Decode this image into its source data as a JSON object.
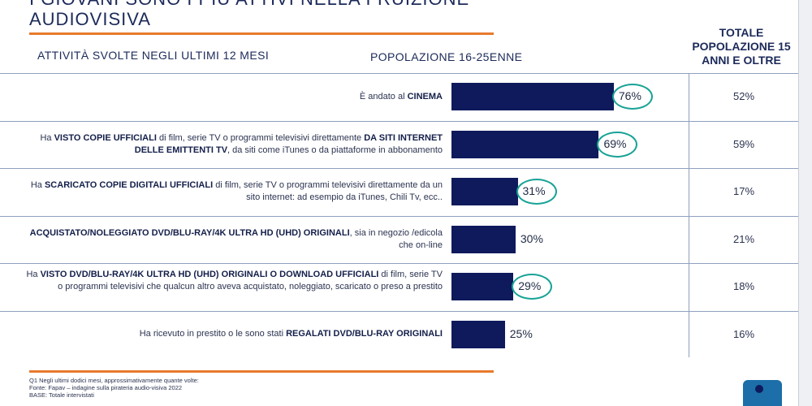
{
  "header": {
    "title_line1": "I GIOVANI SONO I PIÙ ATTIVI NELLA FRUIZIONE",
    "title_line2": "AUDIOVISIVA",
    "col_activity": "ATTIVITÀ SVOLTE NEGLI ULTIMI 12 MESI",
    "col_youth": "POPOLAZIONE 16-25ENNE",
    "col_total": "TOTALE POPOLAZIONE 15 ANNI E OLTRE"
  },
  "chart_data": {
    "type": "bar",
    "orientation": "horizontal",
    "categories": [
      "È andato al CINEMA",
      "Ha VISTO COPIE UFFICIALI di film, serie TV o programmi televisivi direttamente DA SITI INTERNET DELLE EMITTENTI TV, da siti come iTunes o da piattaforme in abbonamento",
      "Ha SCARICATO COPIE DIGITALI UFFICIALI di film, serie TV o programmi televisivi direttamente da un sito internet: ad esempio da iTunes, Chili Tv, ecc..",
      "ACQUISTATO/NOLEGGIATO DVD/BLU-RAY/4K ULTRA HD (UHD) ORIGINALI, sia in negozio /edicola che on-line",
      "Ha VISTO DVD/BLU-RAY/4K ULTRA HD (UHD) ORIGINALI O DOWNLOAD UFFICIALI di film, serie TV o programmi televisivi che qualcun altro aveva acquistato, noleggiato, scaricato o preso a prestito",
      "Ha ricevuto in prestito o le sono stati REGALATI DVD/BLU-RAY ORIGINALI"
    ],
    "series": [
      {
        "name": "POPOLAZIONE 16-25ENNE",
        "values": [
          76,
          69,
          31,
          30,
          29,
          25
        ],
        "labels": [
          "76%",
          "69%",
          "31%",
          "30%",
          "29%",
          "25%"
        ],
        "highlighted": [
          true,
          true,
          true,
          false,
          true,
          false
        ]
      },
      {
        "name": "TOTALE POPOLAZIONE 15 ANNI E OLTRE",
        "values": [
          52,
          59,
          17,
          21,
          18,
          16
        ],
        "labels": [
          "52%",
          "59%",
          "17%",
          "21%",
          "18%",
          "16%"
        ]
      }
    ],
    "colors": {
      "bar": "#0e1a5c",
      "highlight_ring": "#18a396",
      "accent_rule": "#e87a2d"
    }
  },
  "rows": [
    {
      "parts": [
        {
          "t": "È andato al ",
          "b": false
        },
        {
          "t": "CINEMA",
          "b": true
        }
      ]
    },
    {
      "parts": [
        {
          "t": "Ha ",
          "b": false
        },
        {
          "t": "VISTO COPIE UFFICIALI",
          "b": true
        },
        {
          "t": " di film, serie TV o programmi televisivi direttamente ",
          "b": false
        },
        {
          "t": "DA SITI INTERNET DELLE EMITTENTI TV",
          "b": true
        },
        {
          "t": ", da siti come iTunes o da piattaforme in abbonamento",
          "b": false
        }
      ]
    },
    {
      "parts": [
        {
          "t": "Ha ",
          "b": false
        },
        {
          "t": "SCARICATO COPIE DIGITALI UFFICIALI",
          "b": true
        },
        {
          "t": " di film, serie TV o programmi televisivi direttamente da un sito internet: ad esempio da iTunes, Chili Tv, ecc..",
          "b": false
        }
      ]
    },
    {
      "parts": [
        {
          "t": "ACQUISTATO/NOLEGGIATO DVD/BLU-RAY/4K ULTRA HD (UHD) ORIGINALI",
          "b": true
        },
        {
          "t": ", sia in negozio /edicola che on-line",
          "b": false
        }
      ]
    },
    {
      "parts": [
        {
          "t": "Ha ",
          "b": false
        },
        {
          "t": "VISTO DVD/BLU-RAY/4K ULTRA HD (UHD) ORIGINALI O DOWNLOAD UFFICIALI",
          "b": true
        },
        {
          "t": " di film, serie TV o programmi televisivi che qualcun altro aveva acquistato, noleggiato, scaricato o preso a prestito",
          "b": false
        }
      ]
    },
    {
      "parts": [
        {
          "t": "Ha ricevuto in prestito o le sono stati ",
          "b": false
        },
        {
          "t": "REGALATI DVD/BLU-RAY ORIGINALI",
          "b": true
        }
      ]
    }
  ],
  "footer": {
    "note1": "Q1 Negli ultimi dodici mesi, approssimativamente quante volte:",
    "note2": "Fonte: Fapav – indagine sulla pirateria audio-visiva 2022",
    "note3": "BASE: Totale intervistati"
  },
  "logo_icon": "company-logo-icon"
}
